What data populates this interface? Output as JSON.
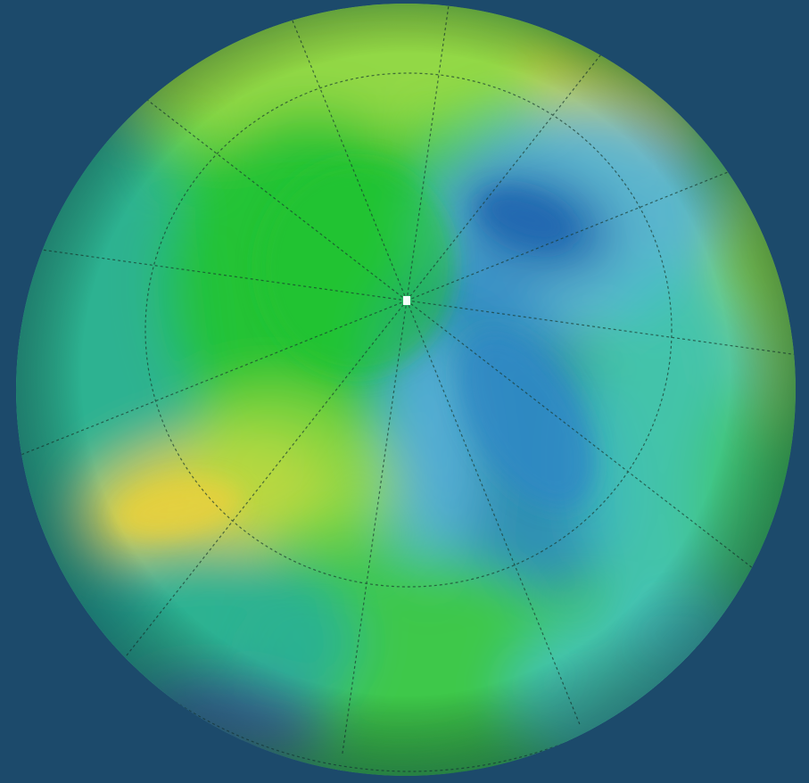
{
  "background": "#1c4a6b",
  "palette": {
    "yellow": "#e9d03c",
    "yellow_green": "#a8dc45",
    "green": "#3fc84a",
    "bright_green": "#22c232",
    "teal": "#28ae9e",
    "cyan_teal": "#44c2c2",
    "light_blue": "#5cb4dc",
    "blue": "#2e86c7",
    "deep_blue": "#1f68b0",
    "violet_blue": "#4a5fb8",
    "grid_line": "#1b3b30",
    "pole_marker": "#f2fffa"
  },
  "map": {
    "projection": "orthographic-north-polar",
    "graticule": true,
    "meridian_count": 12,
    "parallel_count": 2,
    "pole_marker": true
  }
}
